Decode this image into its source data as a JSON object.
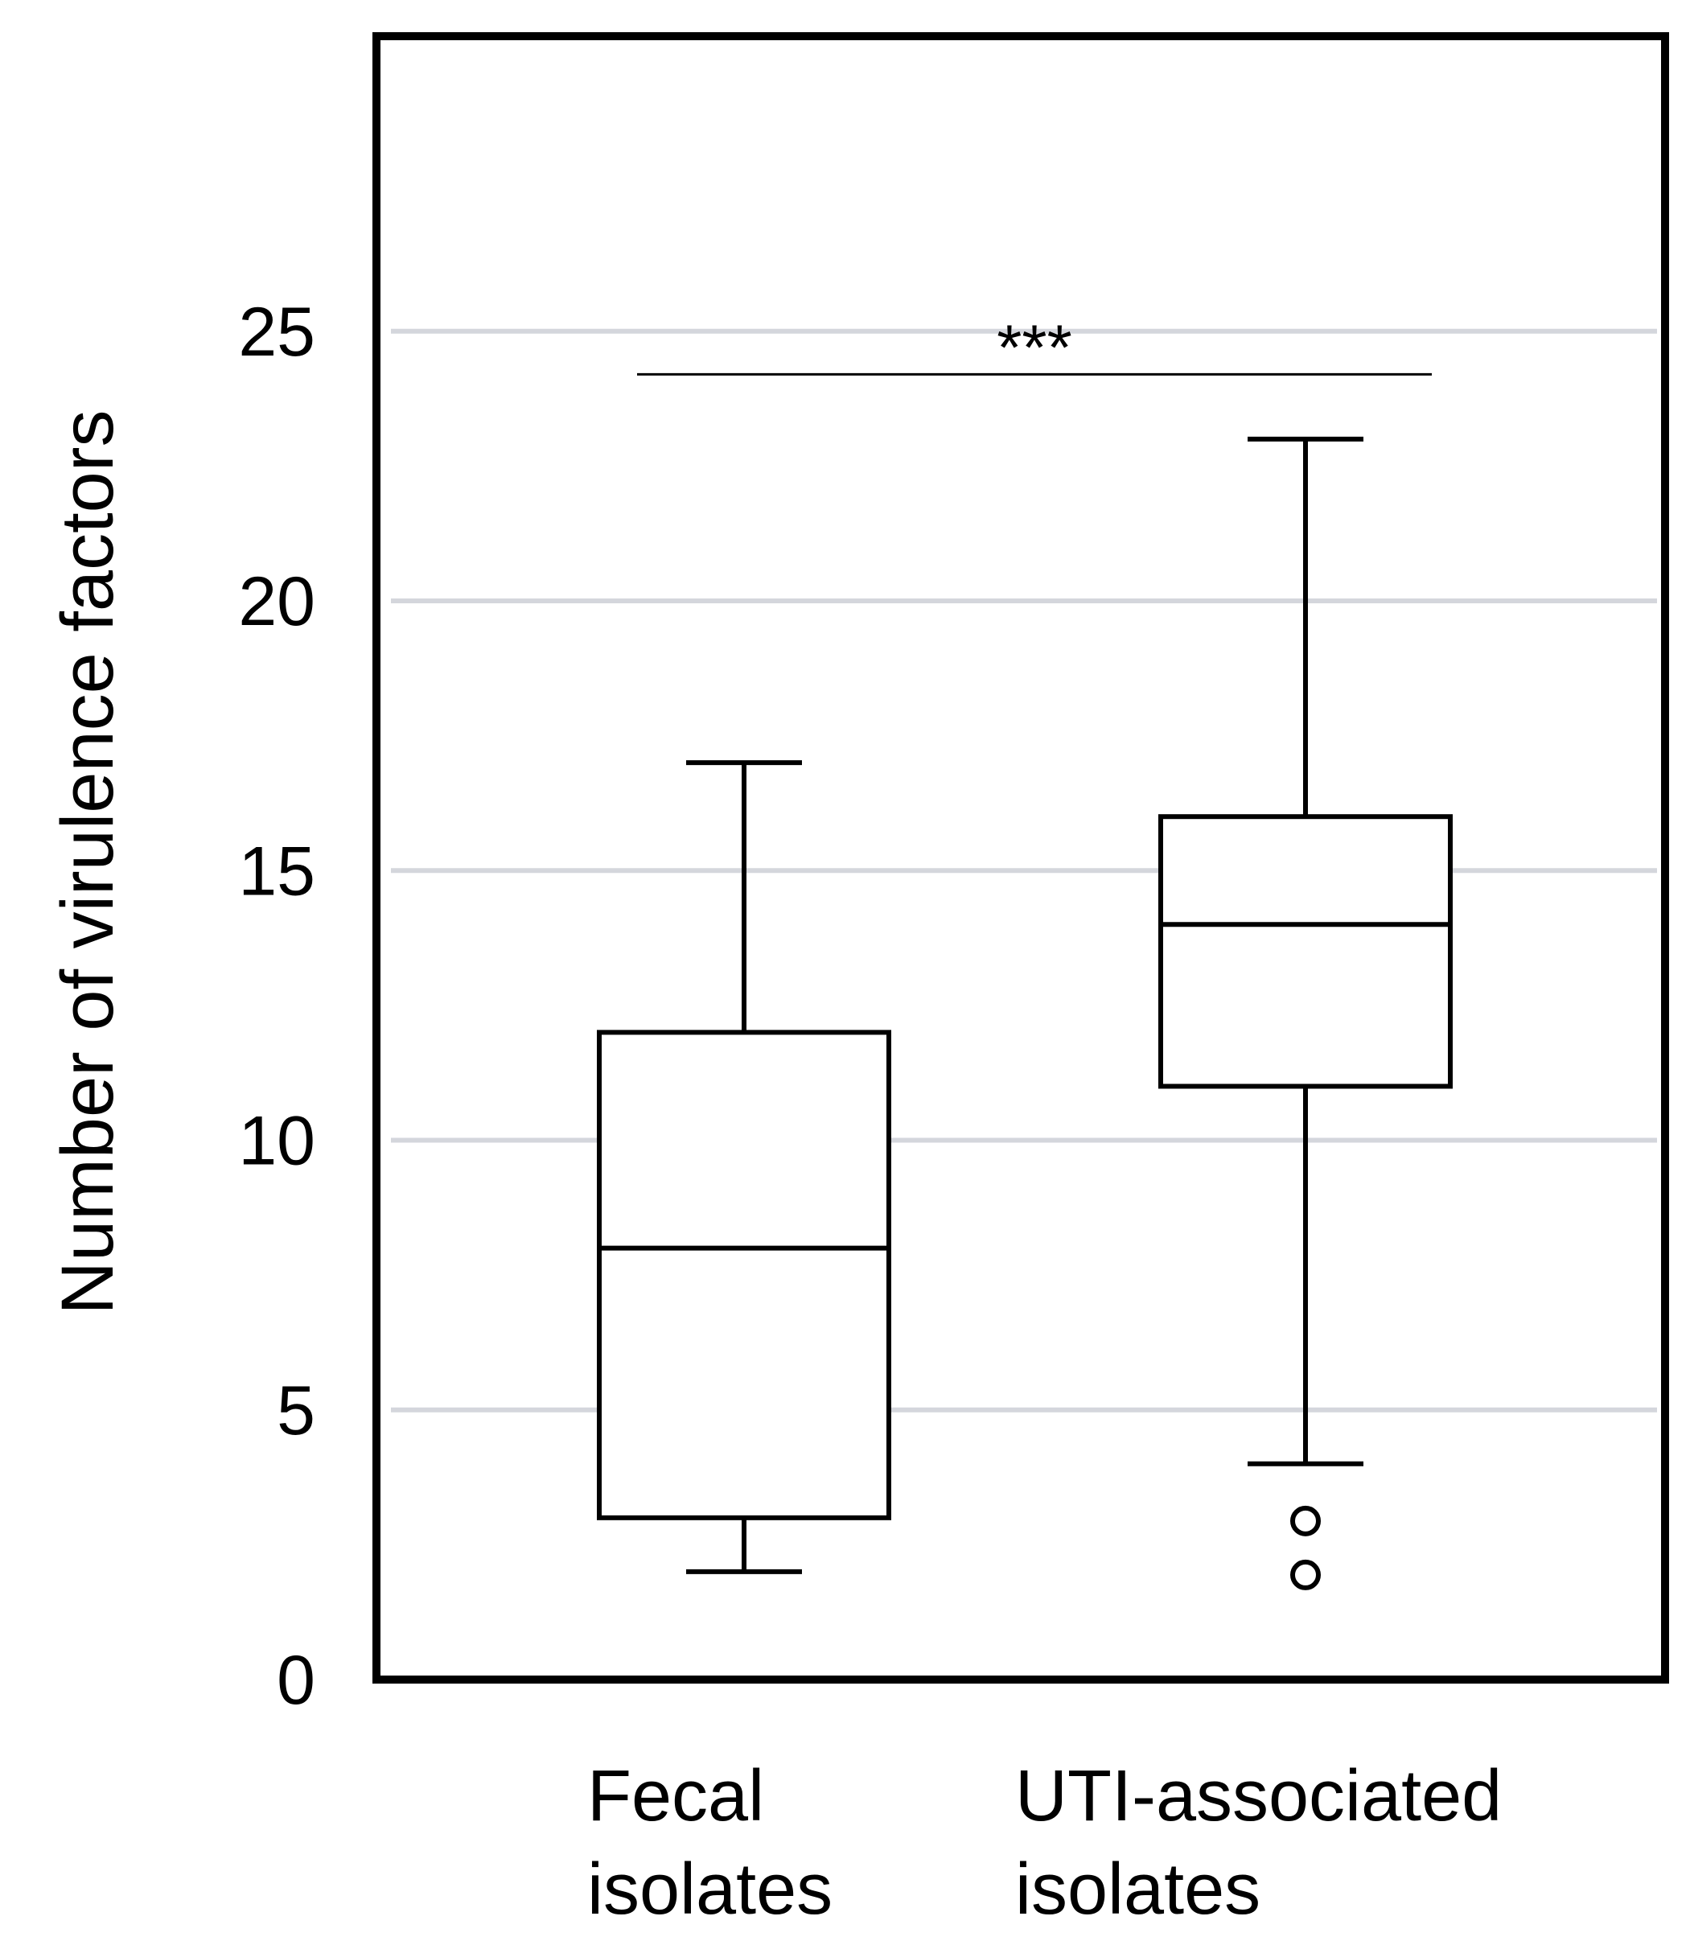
{
  "chart_data": {
    "type": "box",
    "ylabel": "Number of virulence factors",
    "xlabel": "",
    "ylim": [
      0,
      30
    ],
    "yticks": [
      0,
      5,
      10,
      15,
      20,
      25
    ],
    "grid": true,
    "categories": [
      [
        "Fecal",
        "isolates"
      ],
      [
        "UTI-associated",
        "isolates"
      ]
    ],
    "boxes": [
      {
        "category": "Fecal isolates",
        "whisker_low": 2,
        "q1": 3,
        "median": 8,
        "q3": 12,
        "whisker_high": 17,
        "outliers": []
      },
      {
        "category": "UTI-associated isolates",
        "whisker_low": 4,
        "q1": 11,
        "median": 14,
        "q3": 16,
        "whisker_high": 23,
        "outliers": [
          2,
          3
        ]
      }
    ],
    "significance": {
      "label": "***",
      "between": [
        0,
        1
      ],
      "y": 24.2
    },
    "colors": {
      "grid": "#d4d6dc",
      "frame": "#000000",
      "box": "#000000"
    }
  }
}
